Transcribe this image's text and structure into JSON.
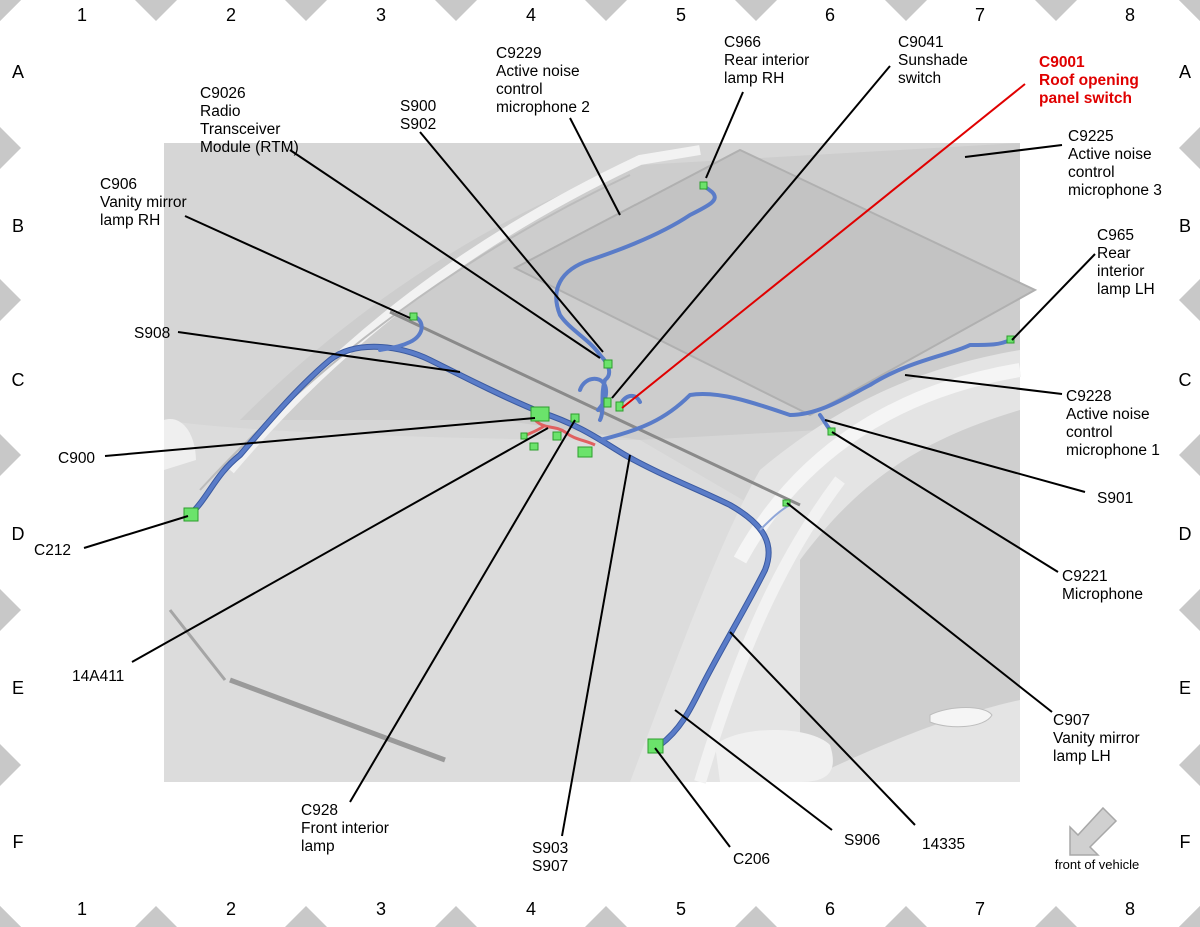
{
  "grid": {
    "columns": [
      "1",
      "2",
      "3",
      "4",
      "5",
      "6",
      "7",
      "8"
    ],
    "rows": [
      "A",
      "B",
      "C",
      "D",
      "E",
      "F"
    ]
  },
  "labels": {
    "c9229": [
      "C9229",
      "Active noise",
      "control",
      "microphone 2"
    ],
    "c966": [
      "C966",
      "Rear interior",
      "lamp RH"
    ],
    "c9041": [
      "C9041",
      "Sunshade",
      "switch"
    ],
    "c9001": [
      "C9001",
      "Roof opening",
      "panel switch"
    ],
    "c9026": [
      "C9026",
      "Radio",
      "Transceiver",
      "Module (RTM)"
    ],
    "s900_s902": [
      "S900",
      "S902"
    ],
    "c9225": [
      "C9225",
      "Active noise",
      "control",
      "microphone 3"
    ],
    "c906": [
      "C906",
      "Vanity mirror",
      "lamp RH"
    ],
    "c965": [
      "C965",
      "Rear",
      "interior",
      "lamp LH"
    ],
    "s908": [
      "S908"
    ],
    "c9228": [
      "C9228",
      "Active noise",
      "control",
      "microphone 1"
    ],
    "c900": [
      "C900"
    ],
    "s901": [
      "S901"
    ],
    "c212": [
      "C212"
    ],
    "c9221": [
      "C9221",
      "Microphone"
    ],
    "a14a411": [
      "14A411"
    ],
    "c907": [
      "C907",
      "Vanity mirror",
      "lamp LH"
    ],
    "c928": [
      "C928",
      "Front interior",
      "lamp"
    ],
    "s903_s907": [
      "S903",
      "S907"
    ],
    "c206": [
      "C206"
    ],
    "s906": [
      "S906"
    ],
    "a14335": [
      "14335"
    ]
  },
  "orientation": {
    "text": "front of vehicle",
    "icon": "arrow-down-left-icon"
  },
  "colors": {
    "wire": "#5a7cc8",
    "connector": "#6be36b",
    "highlight": "#e00000",
    "grid_marker": "#c8c8c8",
    "vehicle": "#d9d9d9"
  }
}
